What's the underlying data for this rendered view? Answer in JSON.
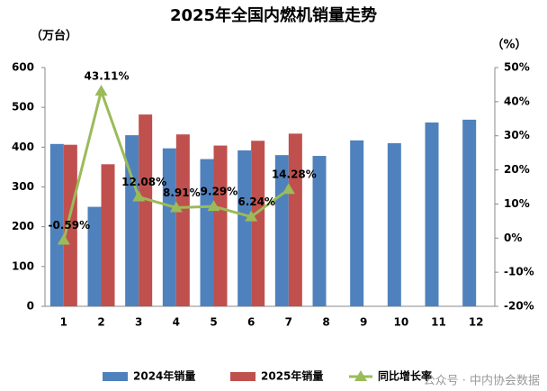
{
  "chart_data": {
    "type": "bar",
    "title": "2025年全国内燃机销量走势",
    "y_label": "（万台）",
    "y2_label": "（%）",
    "categories": [
      "1",
      "2",
      "3",
      "4",
      "5",
      "6",
      "7",
      "8",
      "9",
      "10",
      "11",
      "12"
    ],
    "series": [
      {
        "name": "2024年销量",
        "color": "#4f81bd",
        "type": "bar",
        "values": [
          408,
          250,
          430,
          397,
          370,
          392,
          380,
          378,
          417,
          410,
          462,
          469
        ]
      },
      {
        "name": "2025年销量",
        "color": "#c0504d",
        "type": "bar",
        "values": [
          406,
          357,
          482,
          432,
          404,
          416,
          434,
          null,
          null,
          null,
          null,
          null
        ]
      },
      {
        "name": "同比增长率",
        "color": "#9bbb59",
        "type": "line",
        "axis": "y2",
        "values": [
          -0.59,
          43.11,
          12.08,
          8.91,
          9.29,
          6.24,
          14.28,
          null,
          null,
          null,
          null,
          null
        ],
        "value_labels": [
          "-0.59%",
          "43.11%",
          "12.08%",
          "8.91%",
          "9.29%",
          "6.24%",
          "14.28%",
          null,
          null,
          null,
          null,
          null
        ]
      }
    ],
    "ylim": [
      0,
      600
    ],
    "yticks": [
      0,
      100,
      200,
      300,
      400,
      500,
      600
    ],
    "y2lim": [
      -20,
      50
    ],
    "y2ticks": [
      {
        "value": -20,
        "label": "-20%"
      },
      {
        "value": -10,
        "label": "-10%"
      },
      {
        "value": 0,
        "label": "0%"
      },
      {
        "value": 10,
        "label": "10%"
      },
      {
        "value": 20,
        "label": "20%"
      },
      {
        "value": 30,
        "label": "30%"
      },
      {
        "value": 40,
        "label": "40%"
      },
      {
        "value": 50,
        "label": "50%"
      }
    ],
    "watermark": "公众号 · 中内协会数据"
  }
}
